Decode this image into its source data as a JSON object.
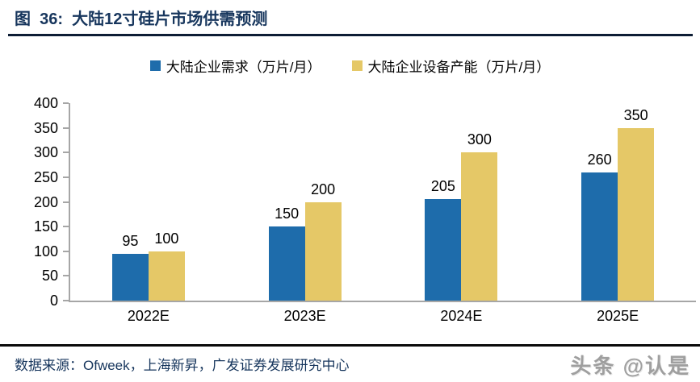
{
  "figure": {
    "title": "图  36:  大陆12寸硅片市场供需预测",
    "source_label": "数据来源：Ofweek，上海新昇，广发证券发展研究中心",
    "watermark": "头条 @认是"
  },
  "chart_data": {
    "type": "bar",
    "title": "大陆12寸硅片市场供需预测",
    "categories": [
      "2022E",
      "2023E",
      "2024E",
      "2025E"
    ],
    "series": [
      {
        "name": "大陆企业需求（万片/月）",
        "color": "#1E6CAB",
        "values": [
          95,
          150,
          205,
          260
        ]
      },
      {
        "name": "大陆企业设备产能（万片/月）",
        "color": "#E5C867",
        "values": [
          100,
          200,
          300,
          350
        ]
      }
    ],
    "xlabel": "",
    "ylabel": "",
    "ylim": [
      0,
      400
    ],
    "yticks": [
      0,
      50,
      100,
      150,
      200,
      250,
      300,
      350,
      400
    ],
    "grid": false,
    "legend_position": "top",
    "value_labels": true
  },
  "colors": {
    "title_navy": "#17365D",
    "axis_gray": "#A6A6A6",
    "rule_dark": "#0D1D35",
    "watermark_gray": "#9F9F9F"
  }
}
